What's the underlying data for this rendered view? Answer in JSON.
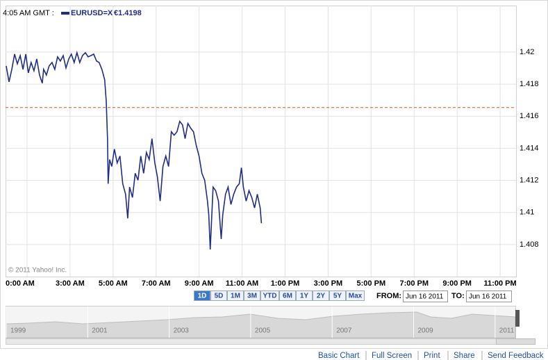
{
  "chart_data": {
    "type": "line",
    "title": "4:05 AM GMT :",
    "quote_label": "€1.4198",
    "copyright": "© 2011 Yahoo! Inc.",
    "x": [
      0.03,
      0.16,
      0.29,
      0.42,
      0.55,
      0.68,
      0.81,
      0.94,
      1.06,
      1.19,
      1.32,
      1.45,
      1.58,
      1.71,
      1.77,
      1.9,
      2.03,
      2.16,
      2.29,
      2.42,
      2.55,
      2.68,
      2.81,
      2.94,
      3.06,
      3.19,
      3.32,
      3.45,
      3.58,
      3.71,
      3.84,
      3.97,
      4.1,
      4.23,
      4.35,
      4.48,
      4.61,
      4.68,
      4.74,
      4.77,
      4.84,
      4.94,
      5.06,
      5.19,
      5.32,
      5.45,
      5.58,
      5.68,
      5.77,
      5.9,
      6.03,
      6.16,
      6.29,
      6.42,
      6.55,
      6.68,
      6.81,
      6.94,
      7.06,
      7.19,
      7.32,
      7.45,
      7.58,
      7.71,
      7.84,
      7.97,
      8.1,
      8.23,
      8.35,
      8.48,
      8.61,
      8.74,
      8.87,
      9.0,
      9.13,
      9.26,
      9.39,
      9.45,
      9.52,
      9.65,
      9.77,
      9.9,
      10.03,
      10.1,
      10.23,
      10.35,
      10.48,
      10.61,
      10.74,
      10.87,
      10.97,
      11.06,
      11.19,
      11.32,
      11.45,
      11.58,
      11.71,
      11.84,
      11.9
    ],
    "series": [
      {
        "name": "EURUSD=X",
        "color": "#1f2d86",
        "values": [
          1.41914,
          1.41814,
          1.41892,
          1.41987,
          1.41927,
          1.41978,
          1.41892,
          1.41987,
          1.4187,
          1.41935,
          1.41883,
          1.41957,
          1.41857,
          1.41806,
          1.41892,
          1.41857,
          1.41914,
          1.41935,
          1.41892,
          1.4197,
          1.41944,
          1.41978,
          1.41901,
          1.41957,
          1.41987,
          1.41935,
          1.41996,
          1.41935,
          1.41978,
          1.41996,
          1.4197,
          1.41978,
          1.41987,
          1.41944,
          1.41935,
          1.41892,
          1.41827,
          1.41698,
          1.4146,
          1.41179,
          1.4133,
          1.41287,
          1.41395,
          1.41309,
          1.41352,
          1.41179,
          1.41114,
          1.40963,
          1.41158,
          1.41093,
          1.41244,
          1.41201,
          1.41352,
          1.41244,
          1.41374,
          1.4133,
          1.4146,
          1.41309,
          1.41222,
          1.41071,
          1.41287,
          1.41352,
          1.41287,
          1.41503,
          1.41482,
          1.41503,
          1.41568,
          1.41546,
          1.4146,
          1.41555,
          1.41525,
          1.41503,
          1.41417,
          1.41352,
          1.41244,
          1.41201,
          1.41071,
          1.40985,
          1.40769,
          1.41158,
          1.41136,
          1.41071,
          1.40834,
          1.40985,
          1.41114,
          1.41158,
          1.4105,
          1.41114,
          1.41158,
          1.41179,
          1.41279,
          1.41158,
          1.41071,
          1.41136,
          1.41093,
          1.41028,
          1.41114,
          1.41028,
          1.40933
        ]
      }
    ],
    "reference_line": 1.41654,
    "reference_color": "#d9541e",
    "xlim": [
      0,
      23.74
    ],
    "xticks": [
      {
        "value": 1,
        "label": "0:00 AM"
      },
      {
        "value": 3,
        "label": "3:00 AM"
      },
      {
        "value": 5,
        "label": "5:00 AM"
      },
      {
        "value": 7,
        "label": "7:00 AM"
      },
      {
        "value": 9,
        "label": "9:00 AM"
      },
      {
        "value": 11,
        "label": "11:00 AM"
      },
      {
        "value": 13,
        "label": "1:00 PM"
      },
      {
        "value": 15,
        "label": "3:00 PM"
      },
      {
        "value": 17,
        "label": "5:00 PM"
      },
      {
        "value": 19,
        "label": "7:00 PM"
      },
      {
        "value": 21,
        "label": "9:00 PM"
      },
      {
        "value": 23,
        "label": "11:00 PM"
      }
    ],
    "ylim": [
      1.406,
      1.4229
    ],
    "yticks": [
      1.408,
      1.41,
      1.412,
      1.414,
      1.416,
      1.418,
      1.42
    ],
    "grid": true
  },
  "controls": {
    "range_buttons": [
      "1D",
      "5D",
      "1M",
      "3M",
      "YTD",
      "6M",
      "1Y",
      "2Y",
      "5Y",
      "Max"
    ],
    "selected_range": 0,
    "from_label": "FROM:",
    "from_date": "Jun 16 2011",
    "to_label": "TO:",
    "to_date": "Jun 16 2011"
  },
  "navigator": {
    "years": [
      "1999",
      "2001",
      "2003",
      "2005",
      "2007",
      "2009",
      "2011"
    ]
  },
  "footer": {
    "links": [
      "Basic Chart",
      "Full Screen",
      "Print",
      "Share",
      "Send Feedback"
    ]
  }
}
